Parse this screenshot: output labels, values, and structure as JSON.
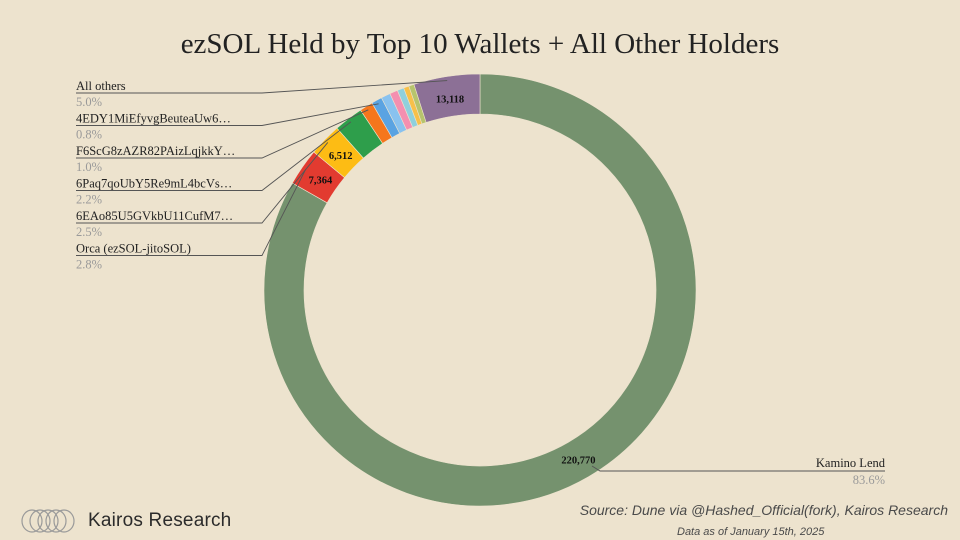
{
  "chart_data": {
    "type": "pie",
    "title": "ezSOL Held by Top 10 Wallets + All Other Holders",
    "donut": true,
    "slices": [
      {
        "name": "Kamino Lend",
        "value": 220770,
        "value_label": "220,770",
        "percent": 83.6,
        "percent_label": "83.6%",
        "color": "#75926e"
      },
      {
        "name": "Orca (ezSOL-jitoSOL)",
        "value": 7364,
        "value_label": "7,364",
        "percent": 2.8,
        "percent_label": "2.8%",
        "color": "#e23b30"
      },
      {
        "name": "6EAo85U5GVkbU11CufM7…",
        "value": 6512,
        "value_label": "6,512",
        "percent": 2.5,
        "percent_label": "2.5%",
        "color": "#fdbc14"
      },
      {
        "name": "6Paq7qoUbY5Re9mL4bcVs…",
        "value": 5800,
        "value_label": "",
        "percent": 2.2,
        "percent_label": "2.2%",
        "color": "#2e9e4b"
      },
      {
        "name": "F6ScG8zAZR82PAizLqjkkY…",
        "value": 2640,
        "value_label": "",
        "percent": 1.0,
        "percent_label": "1.0%",
        "color": "#f5761c"
      },
      {
        "name": "4EDY1MiEfyvgBeuteaUw6…",
        "value": 2110,
        "value_label": "",
        "percent": 0.8,
        "percent_label": "0.8%",
        "color": "#5aa3e2"
      },
      {
        "name": "",
        "value": 1850,
        "value_label": "",
        "percent": 0.7,
        "percent_label": "",
        "color": "#89c2ef"
      },
      {
        "name": "",
        "value": 1590,
        "value_label": "",
        "percent": 0.6,
        "percent_label": "",
        "color": "#f48fb0"
      },
      {
        "name": "",
        "value": 1320,
        "value_label": "",
        "percent": 0.5,
        "percent_label": "",
        "color": "#8fd0dd"
      },
      {
        "name": "",
        "value": 1060,
        "value_label": "",
        "percent": 0.4,
        "percent_label": "",
        "color": "#f7c04a"
      },
      {
        "name": "",
        "value": 1060,
        "value_label": "",
        "percent": 0.4,
        "percent_label": "",
        "color": "#b7c46d"
      },
      {
        "name": "All others",
        "value": 13118,
        "value_label": "13,118",
        "percent": 5.0,
        "percent_label": "5.0%",
        "color": "#8c7096"
      }
    ]
  },
  "footer": {
    "brand_name": "Kairos Research",
    "source": "Source: Dune via @Hashed_Official(fork), Kairos Research",
    "date_note": "Data as of January 15th, 2025"
  }
}
